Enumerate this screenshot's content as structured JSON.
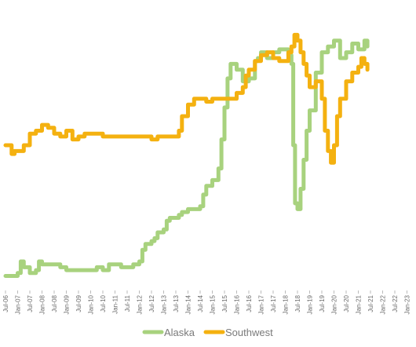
{
  "chart_data": {
    "type": "line",
    "title": "",
    "xlabel": "",
    "ylabel": "",
    "x_tick_labels": [
      "Jul-06",
      "Jan-07",
      "Jul-07",
      "Jan-08",
      "Jul-08",
      "Jan-09",
      "Jul-09",
      "Jan-10",
      "Jul-10",
      "Jan-11",
      "Jul-11",
      "Jan-12",
      "Jul-12",
      "Jan-13",
      "Jul-13",
      "Jan-14",
      "Jul-14",
      "Jan-15",
      "Jul-15",
      "Jan-16",
      "Jul-16",
      "Jan-17",
      "Jul-17",
      "Jan-18",
      "Jul-18",
      "Jan-19",
      "Jul-19",
      "Jan-20",
      "Jul-20",
      "Jan-21",
      "Jul-21",
      "Jan-22",
      "Jul-22",
      "Jan-23"
    ],
    "y_axis_note": "no y-axis values shown; relative index 0-100",
    "ylim": [
      0,
      100
    ],
    "grid": false,
    "legend_position": "bottom",
    "colors": {
      "Alaska": "#a8d27e",
      "Southwest": "#f4b110"
    },
    "series": [
      {
        "name": "Alaska",
        "points": [
          [
            0,
            5
          ],
          [
            2,
            6
          ],
          [
            2.5,
            10
          ],
          [
            3,
            8
          ],
          [
            4,
            6
          ],
          [
            5,
            7
          ],
          [
            5.5,
            10
          ],
          [
            6,
            9
          ],
          [
            8,
            9
          ],
          [
            9,
            8
          ],
          [
            10,
            7
          ],
          [
            12,
            7
          ],
          [
            14,
            7
          ],
          [
            15,
            8
          ],
          [
            16,
            7
          ],
          [
            17,
            9
          ],
          [
            18,
            9
          ],
          [
            19,
            8
          ],
          [
            20,
            8
          ],
          [
            21,
            9
          ],
          [
            22,
            10
          ],
          [
            22.5,
            14
          ],
          [
            23,
            16
          ],
          [
            24,
            17
          ],
          [
            24.5,
            18
          ],
          [
            25,
            20
          ],
          [
            26,
            21
          ],
          [
            26.5,
            24
          ],
          [
            27,
            25
          ],
          [
            28,
            25
          ],
          [
            28.5,
            26
          ],
          [
            29,
            27
          ],
          [
            30,
            28
          ],
          [
            31,
            28
          ],
          [
            32,
            29
          ],
          [
            32.5,
            33
          ],
          [
            33,
            36
          ],
          [
            34,
            38
          ],
          [
            35,
            42
          ],
          [
            35.5,
            52
          ],
          [
            36,
            63
          ],
          [
            36.5,
            73
          ],
          [
            37,
            78
          ],
          [
            38,
            76
          ],
          [
            39,
            72
          ],
          [
            40,
            73
          ],
          [
            41,
            79
          ],
          [
            41.5,
            80
          ],
          [
            42,
            82
          ],
          [
            43,
            80
          ],
          [
            44,
            82
          ],
          [
            45,
            83
          ],
          [
            46,
            83
          ],
          [
            46.5,
            81
          ],
          [
            47,
            78
          ],
          [
            47.3,
            50
          ],
          [
            47.6,
            30
          ],
          [
            48,
            28
          ],
          [
            48.5,
            35
          ],
          [
            49,
            45
          ],
          [
            49.5,
            55
          ],
          [
            50,
            62
          ],
          [
            51,
            75
          ],
          [
            52,
            82
          ],
          [
            53,
            84
          ],
          [
            54,
            86
          ],
          [
            55,
            80
          ],
          [
            56,
            82
          ],
          [
            57,
            85
          ],
          [
            58,
            83
          ],
          [
            59,
            86
          ],
          [
            59.5,
            84
          ]
        ]
      },
      {
        "name": "Southwest",
        "points": [
          [
            0,
            50
          ],
          [
            1,
            47
          ],
          [
            1.5,
            48
          ],
          [
            2,
            48
          ],
          [
            3,
            50
          ],
          [
            4,
            54
          ],
          [
            5,
            55
          ],
          [
            6,
            57
          ],
          [
            7,
            56
          ],
          [
            8,
            54
          ],
          [
            9,
            53
          ],
          [
            10,
            55
          ],
          [
            11,
            52
          ],
          [
            12,
            53
          ],
          [
            13,
            54
          ],
          [
            14,
            54
          ],
          [
            15,
            54
          ],
          [
            16,
            53
          ],
          [
            17,
            53
          ],
          [
            18,
            53
          ],
          [
            19,
            53
          ],
          [
            20,
            53
          ],
          [
            21,
            53
          ],
          [
            22,
            53
          ],
          [
            23,
            53
          ],
          [
            23.5,
            53
          ],
          [
            24,
            52
          ],
          [
            25,
            53
          ],
          [
            25.5,
            53
          ],
          [
            26,
            53
          ],
          [
            27,
            53
          ],
          [
            28,
            53
          ],
          [
            28.5,
            55
          ],
          [
            29,
            60
          ],
          [
            30,
            64
          ],
          [
            31,
            66
          ],
          [
            32,
            66
          ],
          [
            33,
            65
          ],
          [
            34,
            66
          ],
          [
            35,
            66
          ],
          [
            36,
            66
          ],
          [
            37,
            66
          ],
          [
            38,
            68
          ],
          [
            39,
            70
          ],
          [
            39.5,
            74
          ],
          [
            40,
            76
          ],
          [
            41,
            79
          ],
          [
            42,
            81
          ],
          [
            43,
            82
          ],
          [
            44,
            80
          ],
          [
            45,
            79
          ],
          [
            46,
            79
          ],
          [
            46.5,
            82
          ],
          [
            47,
            84
          ],
          [
            47.5,
            88
          ],
          [
            48,
            86
          ],
          [
            48.5,
            82
          ],
          [
            49,
            78
          ],
          [
            49.5,
            74
          ],
          [
            50,
            70
          ],
          [
            51,
            72
          ],
          [
            52,
            66
          ],
          [
            52.5,
            55
          ],
          [
            53,
            48
          ],
          [
            53.5,
            44
          ],
          [
            54,
            50
          ],
          [
            54.5,
            60
          ],
          [
            55,
            66
          ],
          [
            56,
            72
          ],
          [
            57,
            75
          ],
          [
            58,
            77
          ],
          [
            58.5,
            80
          ],
          [
            59,
            78
          ],
          [
            59.5,
            76
          ]
        ]
      }
    ]
  },
  "legend": [
    {
      "label": "Alaska"
    },
    {
      "label": "Southwest"
    }
  ]
}
